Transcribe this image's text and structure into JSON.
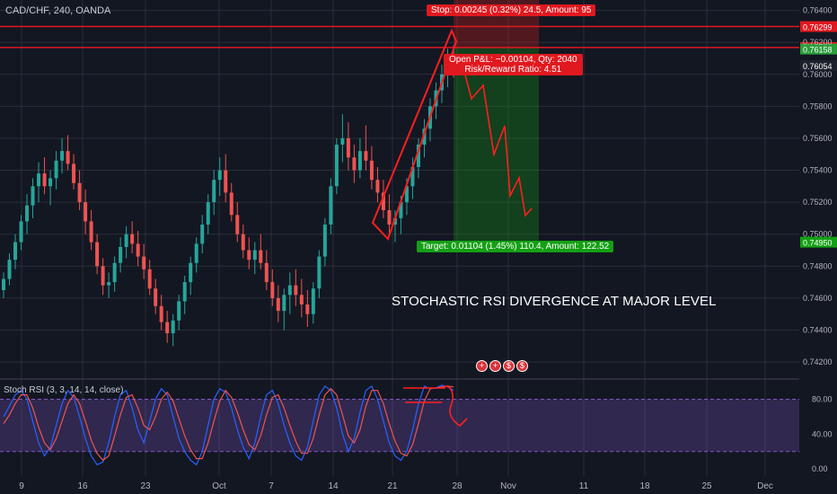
{
  "chart": {
    "symbol": "CAD/CHF, 240, OANDA",
    "annotation": "STOCHASTIC RSI DIVERGENCE AT MAJOR LEVEL",
    "stop_label": "Stop: 0.00245 (0.32%) 24.5, Amount: 95",
    "target_label": "Target: 0.01104 (1.45%) 110.4, Amount: 122.52",
    "pnl_label": "Open P&L: −0.00104, Qty: 2040",
    "rr_label": "Risk/Reward Ratio: 4.51",
    "indicator_label": "Stoch RSI (3, 3, 14, 14, close)",
    "event_icons": [
      "+",
      "+",
      "$",
      "$"
    ]
  },
  "chart_data": [
    {
      "type": "candlestick",
      "title": "CAD/CHF, 240, OANDA",
      "x_ticks": [
        "9",
        "16",
        "23",
        "Oct",
        "7",
        "14",
        "21",
        "28",
        "Nov",
        "11",
        "18",
        "25",
        "Dec"
      ],
      "y_ticks": [
        0.764,
        0.762,
        0.76,
        0.758,
        0.756,
        0.754,
        0.752,
        0.75,
        0.748,
        0.746,
        0.744,
        0.742
      ],
      "ylim": [
        0.74105,
        0.76465
      ],
      "grid": true,
      "price_levels": [
        {
          "name": "stop",
          "value": 0.76299,
          "color": "#e0191f"
        },
        {
          "name": "entry",
          "value": 0.76168,
          "color": "#e0191f"
        },
        {
          "name": "last",
          "value": 0.76158,
          "color": "#2a9d3a"
        },
        {
          "name": "current",
          "value": 0.76054,
          "color": "#1e222d"
        },
        {
          "name": "target",
          "value": 0.7495,
          "color": "#14a014"
        }
      ],
      "series": [
        {
          "values": [
            [
              0.7465,
              0.7476,
              0.746,
              0.7472
            ],
            [
              0.7472,
              0.7488,
              0.7468,
              0.7484
            ],
            [
              0.7484,
              0.75,
              0.7478,
              0.7495
            ],
            [
              0.7495,
              0.7512,
              0.749,
              0.7508
            ],
            [
              0.7508,
              0.7525,
              0.75,
              0.7518
            ],
            [
              0.7518,
              0.7535,
              0.751,
              0.753
            ],
            [
              0.753,
              0.7545,
              0.752,
              0.7538
            ],
            [
              0.7538,
              0.7548,
              0.7525,
              0.753
            ],
            [
              0.753,
              0.754,
              0.7518,
              0.7535
            ],
            [
              0.7535,
              0.7552,
              0.7528,
              0.7546
            ],
            [
              0.7546,
              0.756,
              0.7538,
              0.7552
            ],
            [
              0.7552,
              0.7562,
              0.754,
              0.7544
            ],
            [
              0.7544,
              0.755,
              0.7528,
              0.7532
            ],
            [
              0.7532,
              0.754,
              0.7515,
              0.752
            ],
            [
              0.752,
              0.7528,
              0.75,
              0.7508
            ],
            [
              0.7508,
              0.7515,
              0.749,
              0.7495
            ],
            [
              0.7495,
              0.75,
              0.7475,
              0.748
            ],
            [
              0.748,
              0.7485,
              0.7462,
              0.7468
            ],
            [
              0.7468,
              0.7476,
              0.746,
              0.747
            ],
            [
              0.747,
              0.7486,
              0.7464,
              0.7482
            ],
            [
              0.7482,
              0.7498,
              0.7476,
              0.7492
            ],
            [
              0.7492,
              0.7505,
              0.7485,
              0.75
            ],
            [
              0.75,
              0.7508,
              0.7488,
              0.7494
            ],
            [
              0.7494,
              0.7502,
              0.748,
              0.7486
            ],
            [
              0.7486,
              0.7494,
              0.7472,
              0.7478
            ],
            [
              0.7478,
              0.7484,
              0.7462,
              0.7466
            ],
            [
              0.7466,
              0.7472,
              0.745,
              0.7455
            ],
            [
              0.7455,
              0.7462,
              0.744,
              0.7445
            ],
            [
              0.7445,
              0.7452,
              0.7432,
              0.7438
            ],
            [
              0.7438,
              0.745,
              0.743,
              0.7446
            ],
            [
              0.7446,
              0.7462,
              0.744,
              0.7458
            ],
            [
              0.7458,
              0.7474,
              0.745,
              0.747
            ],
            [
              0.747,
              0.7486,
              0.7462,
              0.7482
            ],
            [
              0.7482,
              0.7498,
              0.7476,
              0.7494
            ],
            [
              0.7494,
              0.7512,
              0.7488,
              0.7506
            ],
            [
              0.7506,
              0.7525,
              0.75,
              0.752
            ],
            [
              0.752,
              0.754,
              0.7512,
              0.7534
            ],
            [
              0.7534,
              0.7548,
              0.7524,
              0.754
            ],
            [
              0.754,
              0.755,
              0.752,
              0.7526
            ],
            [
              0.7526,
              0.7532,
              0.7508,
              0.7512
            ],
            [
              0.7512,
              0.752,
              0.7495,
              0.75
            ],
            [
              0.75,
              0.7506,
              0.7485,
              0.749
            ],
            [
              0.749,
              0.7498,
              0.7478,
              0.7484
            ],
            [
              0.7484,
              0.7495,
              0.7475,
              0.749
            ],
            [
              0.749,
              0.75,
              0.7478,
              0.7482
            ],
            [
              0.7482,
              0.749,
              0.7465,
              0.747
            ],
            [
              0.747,
              0.7478,
              0.7455,
              0.746
            ],
            [
              0.746,
              0.7468,
              0.7445,
              0.7452
            ],
            [
              0.7452,
              0.7466,
              0.744,
              0.7462
            ],
            [
              0.7462,
              0.7476,
              0.745,
              0.7468
            ],
            [
              0.7468,
              0.7478,
              0.7455,
              0.7462
            ],
            [
              0.7462,
              0.7472,
              0.7448,
              0.7456
            ],
            [
              0.7456,
              0.7465,
              0.7442,
              0.745
            ],
            [
              0.745,
              0.747,
              0.7444,
              0.7466
            ],
            [
              0.7466,
              0.749,
              0.746,
              0.7486
            ],
            [
              0.7486,
              0.751,
              0.748,
              0.7506
            ],
            [
              0.7506,
              0.7535,
              0.75,
              0.753
            ],
            [
              0.753,
              0.756,
              0.7525,
              0.7556
            ],
            [
              0.7556,
              0.7575,
              0.7545,
              0.756
            ],
            [
              0.756,
              0.757,
              0.754,
              0.7548
            ],
            [
              0.7548,
              0.7556,
              0.7532,
              0.754
            ],
            [
              0.754,
              0.756,
              0.7535,
              0.7552
            ],
            [
              0.7552,
              0.7568,
              0.754,
              0.7546
            ],
            [
              0.7546,
              0.7555,
              0.7528,
              0.7534
            ],
            [
              0.7534,
              0.7542,
              0.752,
              0.7526
            ],
            [
              0.7526,
              0.7534,
              0.751,
              0.7515
            ],
            [
              0.7515,
              0.7525,
              0.75,
              0.7506
            ],
            [
              0.7506,
              0.7515,
              0.7495,
              0.751
            ],
            [
              0.751,
              0.7524,
              0.75,
              0.752
            ],
            [
              0.752,
              0.7535,
              0.7512,
              0.753
            ],
            [
              0.753,
              0.7548,
              0.7522,
              0.7542
            ],
            [
              0.7542,
              0.756,
              0.7535,
              0.7556
            ],
            [
              0.7556,
              0.7572,
              0.7548,
              0.7566
            ],
            [
              0.7566,
              0.7585,
              0.7558,
              0.758
            ],
            [
              0.758,
              0.7595,
              0.7572,
              0.759
            ],
            [
              0.759,
              0.7606,
              0.7582,
              0.76
            ],
            [
              0.76,
              0.7616,
              0.7592,
              0.761
            ],
            [
              0.761,
              0.7618,
              0.7598,
              0.7605
            ]
          ],
          "columns": [
            "open",
            "high",
            "low",
            "close"
          ]
        }
      ]
    },
    {
      "type": "line",
      "title": "Stoch RSI (3, 3, 14, 14, close)",
      "y_ticks": [
        80.0,
        40.0,
        0.0
      ],
      "ylim": [
        -8,
        100
      ],
      "bands": [
        20,
        80
      ],
      "series": [
        {
          "name": "K",
          "color": "#2962ff",
          "values": [
            60,
            72,
            85,
            90,
            80,
            55,
            30,
            15,
            25,
            50,
            75,
            90,
            82,
            60,
            35,
            15,
            5,
            8,
            30,
            60,
            85,
            90,
            70,
            45,
            30,
            55,
            80,
            92,
            85,
            60,
            35,
            20,
            10,
            5,
            20,
            50,
            80,
            92,
            88,
            70,
            45,
            25,
            12,
            30,
            60,
            85,
            90,
            75,
            50,
            30,
            15,
            10,
            25,
            55,
            85,
            95,
            90,
            70,
            40,
            20,
            35,
            65,
            90,
            95,
            80,
            55,
            30,
            15,
            10,
            20,
            45,
            75,
            95,
            92,
            93,
            96,
            94,
            90
          ]
        },
        {
          "name": "D",
          "color": "#ef5350",
          "values": [
            52,
            62,
            75,
            85,
            85,
            70,
            48,
            30,
            22,
            35,
            55,
            75,
            85,
            75,
            55,
            33,
            18,
            10,
            15,
            38,
            62,
            82,
            85,
            70,
            50,
            45,
            60,
            80,
            88,
            78,
            58,
            38,
            22,
            12,
            12,
            30,
            55,
            78,
            90,
            82,
            65,
            45,
            28,
            22,
            38,
            62,
            82,
            85,
            70,
            50,
            32,
            18,
            18,
            35,
            62,
            85,
            92,
            85,
            62,
            38,
            30,
            45,
            72,
            90,
            90,
            75,
            52,
            32,
            18,
            15,
            28,
            52,
            78,
            92,
            93,
            94,
            95,
            94
          ]
        }
      ]
    }
  ]
}
